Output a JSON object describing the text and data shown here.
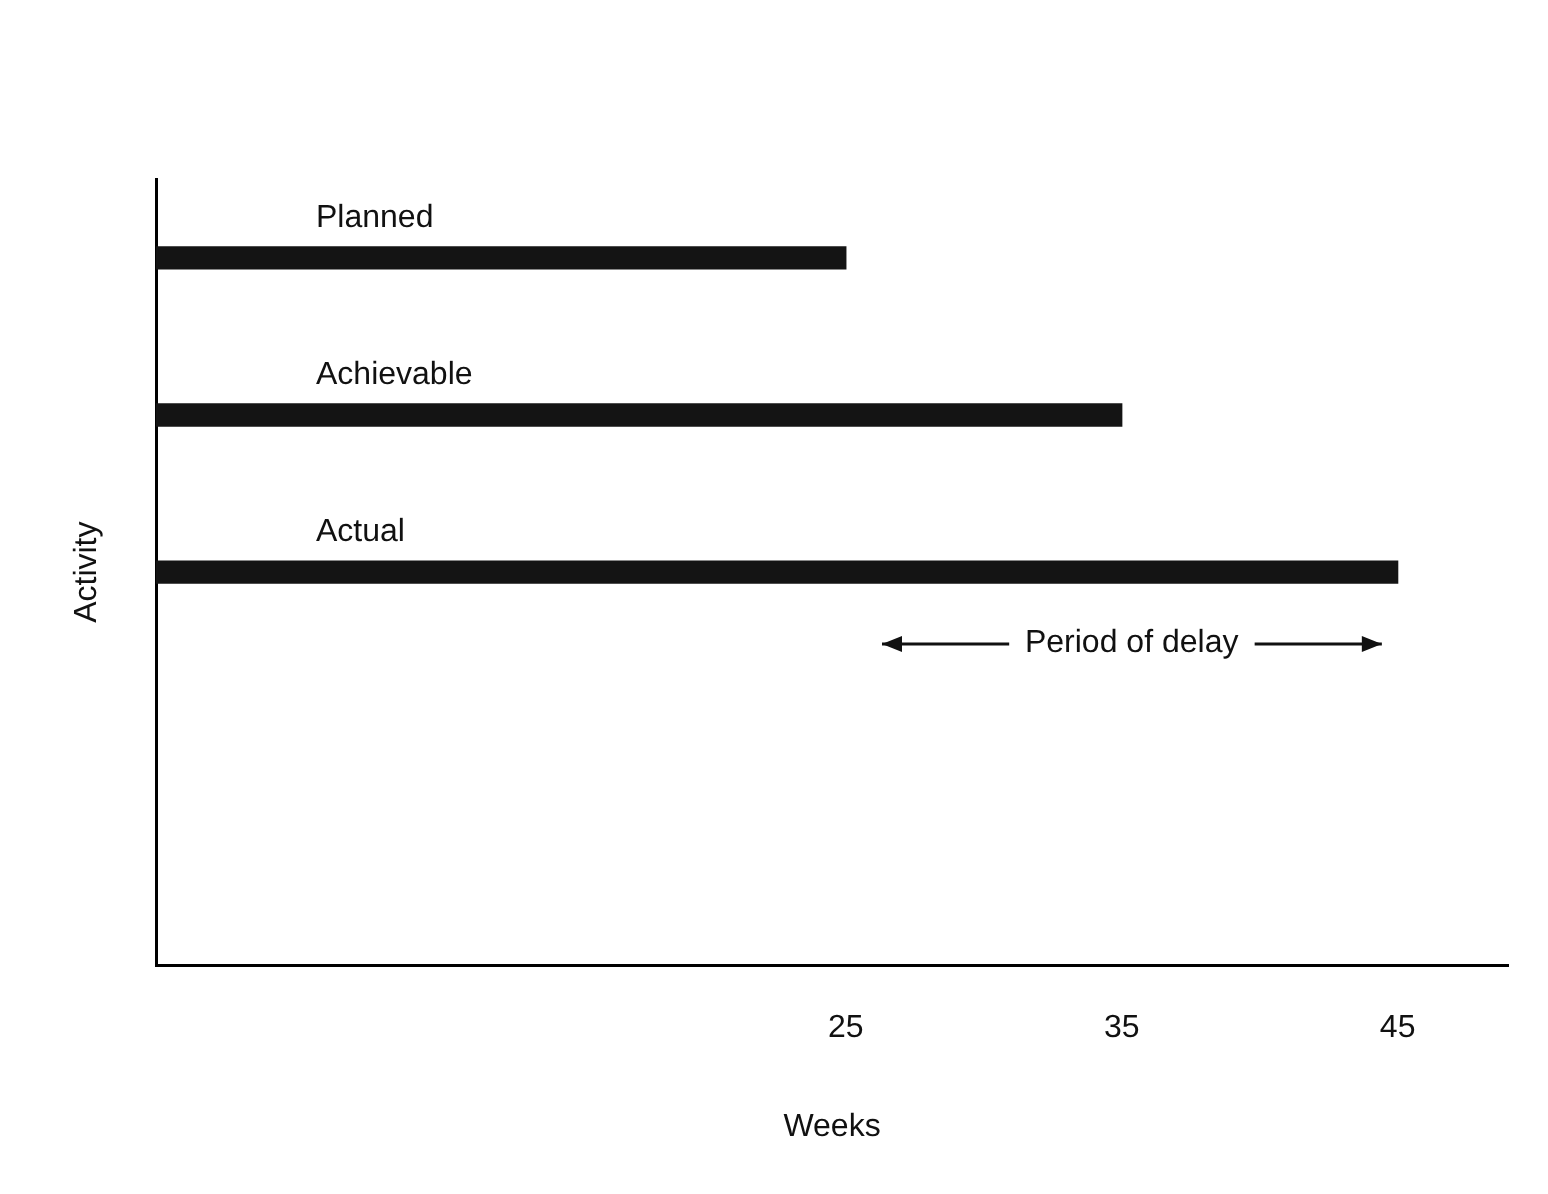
{
  "chart_data": {
    "type": "bar",
    "orientation": "horizontal",
    "categories": [
      "Planned",
      "Achievable",
      "Actual",
      null,
      null
    ],
    "values": [
      25,
      35,
      45,
      null,
      null
    ],
    "color": "#141414",
    "xlim": [
      0,
      49
    ],
    "xticks": [
      25,
      35,
      45
    ],
    "xlabel": "Weeks",
    "ylabel": "Activity",
    "grid": false,
    "legend": false,
    "annotations": [
      "Period of delay"
    ]
  }
}
